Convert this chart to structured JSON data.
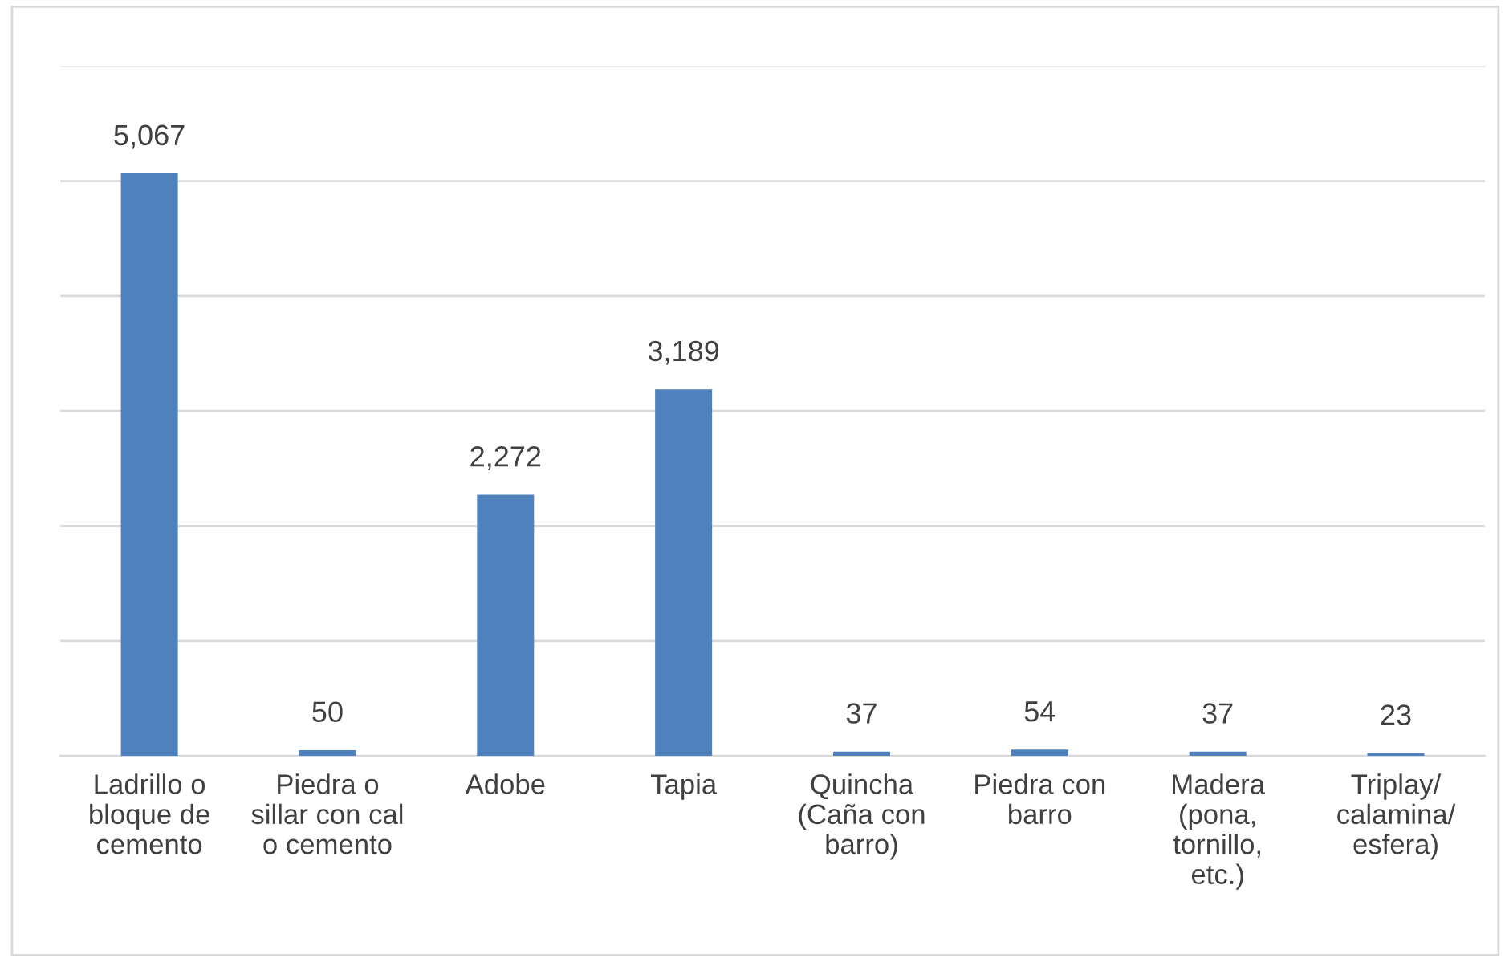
{
  "chart_data": {
    "type": "bar",
    "categories": [
      "Ladrillo o\nbloque de\ncemento",
      "Piedra o\nsillar con cal\no cemento",
      "Adobe",
      "Tapia",
      "Quincha\n(Caña con\nbarro)",
      "Piedra con\nbarro",
      "Madera\n(pona,\ntornillo,\netc.)",
      "Triplay/\ncalamina/\nesfera)"
    ],
    "values": [
      5067,
      50,
      2272,
      3189,
      37,
      54,
      37,
      23
    ],
    "value_labels": [
      "5,067",
      "50",
      "2,272",
      "3,189",
      "37",
      "54",
      "37",
      "23"
    ],
    "color": "#4f81bd",
    "ylim": [
      0,
      6000
    ],
    "yticks": [
      {
        "value": 0,
        "label": null
      },
      {
        "value": 1000,
        "label": null
      },
      {
        "value": 2000,
        "label": null
      },
      {
        "value": 3000,
        "label": null
      },
      {
        "value": 4000,
        "label": null
      },
      {
        "value": 5000,
        "label": null
      },
      {
        "value": 6000,
        "label": null
      }
    ],
    "tick_labels": "x",
    "grid": "y",
    "legend": false
  }
}
